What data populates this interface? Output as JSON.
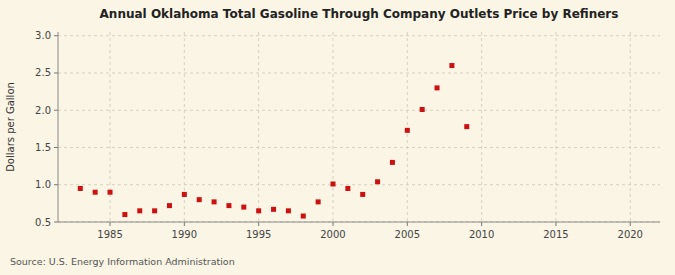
{
  "chart_data": {
    "type": "scatter",
    "title": "Annual Oklahoma Total Gasoline Through Company Outlets Price by Refiners",
    "ylabel": "Dollars per Gallon",
    "annotations": [
      "Source: U.S. Energy Information Administration"
    ],
    "x": [
      1983,
      1984,
      1985,
      1986,
      1987,
      1988,
      1989,
      1990,
      1991,
      1992,
      1993,
      1994,
      1995,
      1996,
      1997,
      1998,
      1999,
      2000,
      2001,
      2002,
      2003,
      2004,
      2005,
      2006,
      2007,
      2008,
      2009
    ],
    "values": [
      0.95,
      0.9,
      0.9,
      0.6,
      0.65,
      0.65,
      0.72,
      0.87,
      0.8,
      0.77,
      0.72,
      0.7,
      0.65,
      0.67,
      0.65,
      0.58,
      0.77,
      1.01,
      0.95,
      0.87,
      1.04,
      1.3,
      1.73,
      2.01,
      2.3,
      2.6,
      1.78
    ],
    "color": "#cc1111",
    "marker": "square",
    "grid": true,
    "xlim": [
      1981.5,
      2022
    ],
    "ylim": [
      0.5,
      3.05
    ],
    "xticks": [
      1985,
      1990,
      1995,
      2000,
      2005,
      2010,
      2015,
      2020
    ],
    "yticks": [
      0.5,
      {
        "value": 1.0,
        "label": "1.0"
      },
      1.5,
      {
        "value": 2.0,
        "label": "2.0"
      },
      2.5,
      {
        "value": 3.0,
        "label": "3.0"
      }
    ]
  }
}
